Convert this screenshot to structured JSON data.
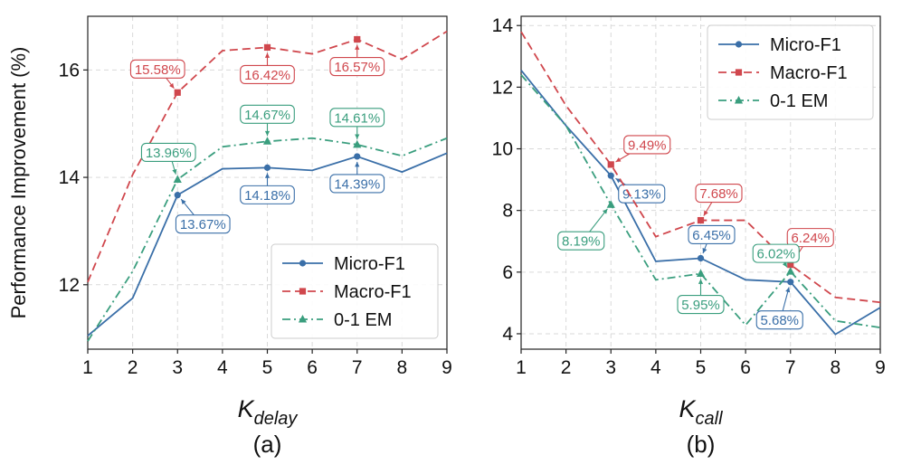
{
  "chart_data": [
    {
      "type": "line",
      "panel_label": "(a)",
      "xlabel_main": "K",
      "xlabel_sub": "delay",
      "ylabel": "Performance Improvement (%)",
      "x": [
        1,
        2,
        3,
        4,
        5,
        6,
        7,
        8,
        9
      ],
      "xlim": [
        1,
        9
      ],
      "ylim": [
        10.8,
        17.0
      ],
      "yticks": [
        12,
        14,
        16
      ],
      "grid": true,
      "legend_position": "lower-right",
      "series": [
        {
          "name": "Micro-F1",
          "color": "#3a6fa8",
          "linestyle": "solid",
          "marker": "circle",
          "values": [
            11.05,
            11.75,
            13.67,
            14.16,
            14.18,
            14.13,
            14.39,
            14.1,
            14.45
          ],
          "annotations": [
            {
              "x": 3,
              "y": 13.67,
              "label": "13.67%"
            },
            {
              "x": 5,
              "y": 14.18,
              "label": "14.18%"
            },
            {
              "x": 7,
              "y": 14.39,
              "label": "14.39%"
            }
          ]
        },
        {
          "name": "Macro-F1",
          "color": "#d0474d",
          "linestyle": "dashed",
          "marker": "square",
          "values": [
            12.05,
            14.05,
            15.58,
            16.36,
            16.42,
            16.3,
            16.57,
            16.2,
            16.72
          ],
          "annotations": [
            {
              "x": 3,
              "y": 15.58,
              "label": "15.58%"
            },
            {
              "x": 5,
              "y": 16.42,
              "label": "16.42%"
            },
            {
              "x": 7,
              "y": 16.57,
              "label": "16.57%"
            }
          ]
        },
        {
          "name": "0-1 EM",
          "color": "#3a9e7e",
          "linestyle": "dashdot",
          "marker": "triangle",
          "values": [
            10.95,
            12.25,
            13.96,
            14.57,
            14.67,
            14.73,
            14.61,
            14.4,
            14.73
          ],
          "annotations": [
            {
              "x": 3,
              "y": 13.96,
              "label": "13.96%"
            },
            {
              "x": 5,
              "y": 14.67,
              "label": "14.67%"
            },
            {
              "x": 7,
              "y": 14.61,
              "label": "14.61%"
            }
          ]
        }
      ]
    },
    {
      "type": "line",
      "panel_label": "(b)",
      "xlabel_main": "K",
      "xlabel_sub": "call",
      "ylabel": "",
      "x": [
        1,
        2,
        3,
        4,
        5,
        6,
        7,
        8,
        9
      ],
      "xlim": [
        1,
        9
      ],
      "ylim": [
        3.5,
        14.3
      ],
      "yticks": [
        4,
        6,
        8,
        10,
        12,
        14
      ],
      "grid": true,
      "legend_position": "top-right",
      "series": [
        {
          "name": "Micro-F1",
          "color": "#3a6fa8",
          "linestyle": "solid",
          "marker": "circle",
          "values": [
            12.55,
            10.75,
            9.13,
            6.35,
            6.45,
            5.75,
            5.68,
            3.98,
            4.85
          ],
          "annotations": [
            {
              "x": 3,
              "y": 9.13,
              "label": "9.13%"
            },
            {
              "x": 5,
              "y": 6.45,
              "label": "6.45%"
            },
            {
              "x": 7,
              "y": 5.68,
              "label": "5.68%"
            }
          ]
        },
        {
          "name": "Macro-F1",
          "color": "#d0474d",
          "linestyle": "dashed",
          "marker": "square",
          "values": [
            13.8,
            11.4,
            9.49,
            7.15,
            7.68,
            7.68,
            6.24,
            5.18,
            5.02
          ],
          "annotations": [
            {
              "x": 3,
              "y": 9.49,
              "label": "9.49%"
            },
            {
              "x": 5,
              "y": 7.68,
              "label": "7.68%"
            },
            {
              "x": 7,
              "y": 6.24,
              "label": "6.24%"
            }
          ]
        },
        {
          "name": "0-1 EM",
          "color": "#3a9e7e",
          "linestyle": "dashdot",
          "marker": "triangle",
          "values": [
            12.4,
            10.75,
            8.19,
            5.75,
            5.95,
            4.28,
            6.02,
            4.42,
            4.2
          ],
          "annotations": [
            {
              "x": 3,
              "y": 8.19,
              "label": "8.19%"
            },
            {
              "x": 5,
              "y": 5.95,
              "label": "5.95%"
            },
            {
              "x": 7,
              "y": 6.02,
              "label": "6.02%"
            }
          ]
        }
      ]
    }
  ]
}
